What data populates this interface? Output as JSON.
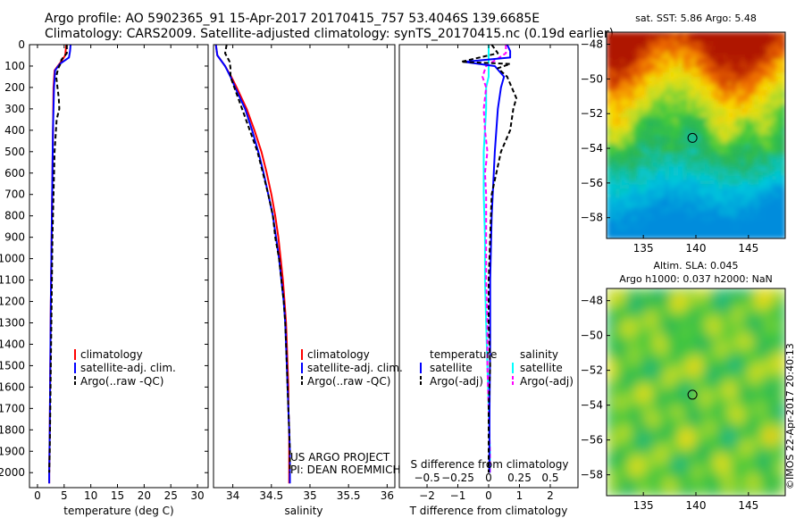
{
  "header": {
    "line1": "Argo profile: AO 5902365_91 15-Apr-2017 20170415_757 53.4046S 139.6685E",
    "line2": "Climatology: CARS2009. Satellite-adjusted climatology: synTS_20170415.nc (0.19d earlier)"
  },
  "colors": {
    "climatology": "#ff0000",
    "satellite": "#0000ff",
    "argo": "#000000",
    "sal_satellite": "#00ffff",
    "sal_argo": "#ff00ff"
  },
  "chart_data": [
    {
      "type": "line",
      "id": "temperature",
      "xlabel": "temperature (deg C)",
      "xlim": [
        -1.5,
        32
      ],
      "ylim": [
        2070,
        0
      ],
      "x_ticks": [
        0,
        5,
        10,
        15,
        20,
        25,
        30
      ],
      "y_ticks": [
        0,
        100,
        200,
        300,
        400,
        500,
        600,
        700,
        800,
        900,
        1000,
        1100,
        1200,
        1300,
        1400,
        1500,
        1600,
        1700,
        1800,
        1900,
        2000
      ],
      "legend": [
        "climatology",
        "satellite-adj. clim.",
        "Argo(..raw -QC)"
      ],
      "series": [
        {
          "name": "climatology",
          "depth": [
            0,
            50,
            80,
            120,
            200,
            400,
            600,
            800,
            1000,
            1200,
            1500,
            1800,
            2000,
            2050
          ],
          "values": [
            5.4,
            5.2,
            4.4,
            3.2,
            3.0,
            2.9,
            2.8,
            2.7,
            2.6,
            2.5,
            2.4,
            2.3,
            2.2,
            2.2
          ]
        },
        {
          "name": "satellite-adj. clim.",
          "depth": [
            0,
            30,
            60,
            90,
            120,
            200,
            400,
            600,
            800,
            1000,
            1200,
            1500,
            1800,
            2000,
            2050
          ],
          "values": [
            6.2,
            6.1,
            5.9,
            4.2,
            3.3,
            3.1,
            2.9,
            2.8,
            2.7,
            2.6,
            2.5,
            2.4,
            2.3,
            2.2,
            2.2
          ]
        },
        {
          "name": "Argo(..raw -QC)",
          "depth": [
            0,
            40,
            70,
            90,
            110,
            150,
            250,
            300,
            350,
            500,
            700,
            900,
            1100,
            1300,
            1500,
            1700,
            1900,
            2000
          ],
          "values": [
            5.5,
            5.5,
            4.5,
            4.3,
            3.9,
            3.5,
            4.0,
            4.1,
            3.6,
            3.2,
            3.0,
            2.8,
            2.7,
            2.6,
            2.5,
            2.4,
            2.3,
            2.2
          ]
        }
      ]
    },
    {
      "type": "line",
      "id": "salinity",
      "xlabel": "salinity",
      "xlim": [
        33.75,
        36.1
      ],
      "ylim": [
        2070,
        0
      ],
      "x_ticks": [
        34,
        34.5,
        35,
        35.5,
        36
      ],
      "legend": [
        "climatology",
        "satellite-adj. clim.",
        "Argo(..raw -QC)"
      ],
      "annotation": [
        "US ARGO PROJECT",
        "PI: DEAN ROEMMICH"
      ],
      "series": [
        {
          "name": "climatology",
          "depth": [
            0,
            50,
            100,
            150,
            200,
            300,
            400,
            500,
            600,
            700,
            800,
            900,
            1000,
            1100,
            1200,
            1300,
            1400,
            1500,
            1600,
            1700,
            1800,
            1900,
            2000,
            2050
          ],
          "values": [
            33.78,
            33.8,
            33.9,
            33.98,
            34.05,
            34.18,
            34.28,
            34.37,
            34.44,
            34.5,
            34.55,
            34.59,
            34.62,
            34.65,
            34.67,
            34.69,
            34.7,
            34.71,
            34.72,
            34.72,
            34.73,
            34.73,
            34.73,
            34.73
          ]
        },
        {
          "name": "satellite-adj. clim.",
          "depth": [
            0,
            50,
            100,
            150,
            200,
            300,
            400,
            500,
            600,
            700,
            800,
            900,
            1000,
            1100,
            1200,
            1300,
            1400,
            1500,
            1600,
            1700,
            1800,
            1900,
            2000,
            2050
          ],
          "values": [
            33.78,
            33.8,
            33.9,
            33.97,
            34.03,
            34.16,
            34.25,
            34.33,
            34.4,
            34.46,
            34.52,
            34.56,
            34.6,
            34.63,
            34.66,
            34.68,
            34.69,
            34.7,
            34.71,
            34.72,
            34.73,
            34.74,
            34.74,
            34.74
          ]
        },
        {
          "name": "Argo(..raw -QC)",
          "depth": [
            0,
            40,
            80,
            110,
            150,
            200,
            300,
            400,
            500,
            600,
            700,
            800,
            900,
            1000,
            1100,
            1200,
            1300,
            1400,
            1500,
            1600,
            1700,
            1800,
            1900,
            2000
          ],
          "values": [
            33.92,
            33.9,
            33.96,
            33.97,
            33.97,
            34.02,
            34.12,
            34.22,
            34.32,
            34.39,
            34.46,
            34.52,
            34.55,
            34.6,
            34.63,
            34.66,
            34.68,
            34.69,
            34.7,
            34.71,
            34.72,
            34.73,
            34.74,
            34.74
          ]
        }
      ]
    },
    {
      "type": "line",
      "id": "difference",
      "xlabel": "T difference from climatology",
      "xlabel_top": "S difference from climatology",
      "xlim": [
        -2.9,
        2.9
      ],
      "ylim": [
        2070,
        0
      ],
      "x_ticks": [
        -2,
        -1,
        0,
        1,
        2
      ],
      "s_ticks": [
        -0.5,
        -0.25,
        0,
        0.25,
        0.5
      ],
      "legend_temperature": {
        "title": "temperature",
        "items": [
          "satellite",
          "Argo(-adj)"
        ]
      },
      "legend_salinity": {
        "title": "salinity",
        "items": [
          "satellite",
          "Argo(-adj)"
        ]
      },
      "series": [
        {
          "name": "temperature satellite",
          "depth": [
            0,
            30,
            60,
            80,
            100,
            150,
            200,
            300,
            500,
            800,
            1100,
            1400,
            1700,
            2000
          ],
          "values": [
            0.6,
            0.7,
            0.7,
            -0.8,
            0.2,
            0.5,
            0.4,
            0.3,
            0.2,
            0.1,
            0.05,
            0.05,
            0.03,
            0.02
          ]
        },
        {
          "name": "temperature Argo(-adj)",
          "depth": [
            0,
            40,
            70,
            80,
            90,
            110,
            150,
            250,
            300,
            400,
            500,
            600,
            700,
            900,
            1100,
            1300,
            1500,
            1700,
            1900,
            2000
          ],
          "values": [
            0.1,
            0.3,
            -0.6,
            -0.9,
            0.7,
            0.3,
            0.6,
            0.9,
            0.8,
            0.7,
            0.4,
            0.25,
            0.1,
            0.05,
            0.0,
            0.0,
            0.05,
            0.0,
            0.0,
            0.0
          ]
        },
        {
          "name": "salinity satellite",
          "depth": [
            0,
            50,
            100,
            150,
            200,
            300,
            500,
            700,
            900,
            1100,
            1300,
            1500,
            1700,
            1900,
            2000
          ],
          "values": [
            0.0,
            0.0,
            0.0,
            0.0,
            -0.02,
            -0.02,
            -0.04,
            -0.04,
            -0.03,
            -0.03,
            -0.02,
            -0.01,
            0.0,
            0.01,
            0.01
          ]
        },
        {
          "name": "salinity Argo(-adj)",
          "depth": [
            0,
            40,
            70,
            100,
            150,
            200,
            300,
            400,
            500,
            600,
            700,
            900,
            1100,
            1300,
            1500,
            1700,
            1900,
            2000
          ],
          "values": [
            0.14,
            0.14,
            0.06,
            -0.02,
            -0.05,
            -0.02,
            -0.04,
            -0.03,
            -0.01,
            -0.03,
            -0.02,
            -0.02,
            -0.02,
            -0.01,
            -0.01,
            0.0,
            0.01,
            0.01
          ]
        }
      ]
    },
    {
      "type": "heatmap",
      "id": "sst-map",
      "title": "sat. SST: 5.86 Argo: 5.48",
      "xlim": [
        131.5,
        148.5
      ],
      "ylim": [
        -59.2,
        -47.3
      ],
      "x_ticks": [
        135,
        140,
        145
      ],
      "y_ticks": [
        -48,
        -50,
        -52,
        -54,
        -56,
        -58
      ],
      "float_position": {
        "lon": 139.67,
        "lat": -53.4
      },
      "color_bands_north_to_south": [
        "dark red",
        "red",
        "orange",
        "yellow",
        "green",
        "teal",
        "cyan"
      ]
    },
    {
      "type": "heatmap",
      "id": "sla-map",
      "title": "Altim. SLA: 0.045",
      "subtitle": "Argo h1000: 0.037 h2000: NaN",
      "xlim": [
        131.5,
        148.5
      ],
      "ylim": [
        -59.2,
        -47.3
      ],
      "x_ticks": [
        135,
        140,
        145
      ],
      "y_ticks": [
        -48,
        -50,
        -52,
        -54,
        -56,
        -58
      ],
      "float_position": {
        "lon": 139.67,
        "lat": -53.4
      }
    }
  ],
  "footer": {
    "stamp": "©IMOS 22-Apr-2017 20:40:13"
  }
}
